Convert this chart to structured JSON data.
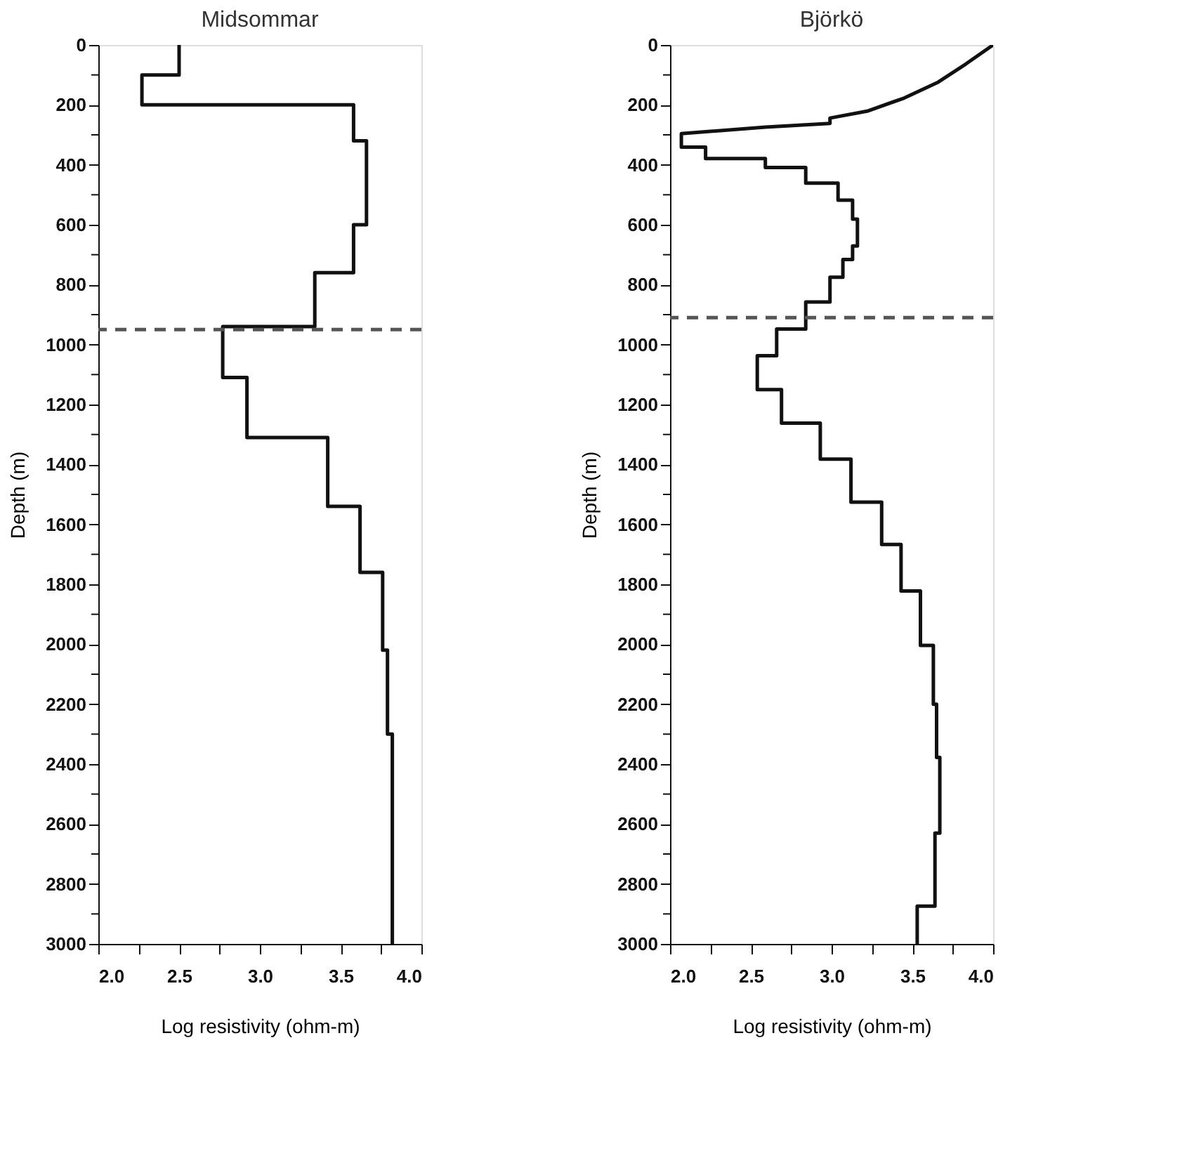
{
  "chart_data": [
    {
      "type": "line",
      "title": "Midsommar",
      "xlabel": "Log resistivity (ohm-m)",
      "ylabel": "Depth (m)",
      "xlim": [
        2.0,
        4.0
      ],
      "ylim": [
        3000,
        0
      ],
      "xticks": [
        {
          "value": 2.0,
          "label": "2.0"
        },
        {
          "value": 2.25,
          "label": null
        },
        {
          "value": 2.5,
          "label": "2.5"
        },
        {
          "value": 2.75,
          "label": null
        },
        {
          "value": 3.0,
          "label": "3.0"
        },
        {
          "value": 3.25,
          "label": null
        },
        {
          "value": 3.5,
          "label": "3.5"
        },
        {
          "value": 3.75,
          "label": null
        },
        {
          "value": 4.0,
          "label": "4.0"
        }
      ],
      "yticks": [
        0,
        {
          "value": 100,
          "label": null
        },
        200,
        {
          "value": 300,
          "label": null
        },
        400,
        {
          "value": 500,
          "label": null
        },
        600,
        {
          "value": 700,
          "label": null
        },
        800,
        {
          "value": 900,
          "label": null
        },
        1000,
        {
          "value": 1100,
          "label": null
        },
        1200,
        {
          "value": 1300,
          "label": null
        },
        1400,
        {
          "value": 1500,
          "label": null
        },
        1600,
        {
          "value": 1700,
          "label": null
        },
        1800,
        {
          "value": 1900,
          "label": null
        },
        2000,
        {
          "value": 2100,
          "label": null
        },
        2200,
        {
          "value": 2300,
          "label": null
        },
        2400,
        {
          "value": 2500,
          "label": null
        },
        2600,
        {
          "value": 2700,
          "label": null
        },
        2800,
        {
          "value": 2900,
          "label": null
        },
        3000
      ],
      "grid": false,
      "marker": "none",
      "line_style": "solid",
      "ref_lines": [
        {
          "axis": "y",
          "value": 950,
          "line_style": "dashed",
          "color": "#555555"
        }
      ],
      "series": [
        {
          "color": "#111111",
          "x": [
            2.5,
            2.5,
            2.27,
            2.27,
            3.58,
            3.58,
            3.66,
            3.66,
            3.58,
            3.58,
            3.34,
            3.34,
            2.77,
            2.77,
            2.92,
            2.92,
            3.42,
            3.42,
            3.62,
            3.62,
            3.76,
            3.76,
            3.79,
            3.79,
            3.82,
            3.82
          ],
          "values": [
            0,
            100,
            100,
            200,
            200,
            320,
            320,
            600,
            600,
            760,
            760,
            940,
            940,
            1110,
            1110,
            1310,
            1310,
            1540,
            1540,
            1760,
            1760,
            2020,
            2020,
            2300,
            2300,
            3000
          ]
        }
      ]
    },
    {
      "type": "line",
      "title": "Björkö",
      "xlabel": "Log resistivity (ohm-m)",
      "ylabel": "Depth (m)",
      "xlim": [
        2.0,
        4.0
      ],
      "ylim": [
        3000,
        0
      ],
      "xticks": [
        {
          "value": 2.0,
          "label": "2.0"
        },
        {
          "value": 2.25,
          "label": null
        },
        {
          "value": 2.5,
          "label": "2.5"
        },
        {
          "value": 2.75,
          "label": null
        },
        {
          "value": 3.0,
          "label": "3.0"
        },
        {
          "value": 3.25,
          "label": null
        },
        {
          "value": 3.5,
          "label": "3.5"
        },
        {
          "value": 3.75,
          "label": null
        },
        {
          "value": 4.0,
          "label": "4.0"
        }
      ],
      "yticks": [
        0,
        {
          "value": 100,
          "label": null
        },
        200,
        {
          "value": 300,
          "label": null
        },
        400,
        {
          "value": 500,
          "label": null
        },
        600,
        {
          "value": 700,
          "label": null
        },
        800,
        {
          "value": 900,
          "label": null
        },
        1000,
        {
          "value": 1100,
          "label": null
        },
        1200,
        {
          "value": 1300,
          "label": null
        },
        1400,
        {
          "value": 1500,
          "label": null
        },
        1600,
        {
          "value": 1700,
          "label": null
        },
        1800,
        {
          "value": 1900,
          "label": null
        },
        2000,
        {
          "value": 2100,
          "label": null
        },
        2200,
        {
          "value": 2300,
          "label": null
        },
        2400,
        {
          "value": 2500,
          "label": null
        },
        2600,
        {
          "value": 2700,
          "label": null
        },
        2800,
        {
          "value": 2900,
          "label": null
        },
        3000
      ],
      "grid": false,
      "marker": "none",
      "line_style": "solid",
      "ref_lines": [
        {
          "axis": "y",
          "value": 910,
          "line_style": "dashed",
          "color": "#555555"
        }
      ],
      "series": [
        {
          "color": "#111111",
          "x": [
            4.0,
            3.83,
            3.66,
            3.45,
            3.22,
            2.99,
            2.99,
            2.59,
            2.07,
            2.07,
            2.22,
            2.22,
            2.59,
            2.59,
            2.84,
            2.84,
            3.04,
            3.04,
            3.13,
            3.13,
            3.16,
            3.16,
            3.13,
            3.13,
            3.07,
            3.07,
            2.99,
            2.99,
            2.84,
            2.84,
            2.66,
            2.66,
            2.54,
            2.54,
            2.69,
            2.69,
            2.93,
            2.93,
            3.12,
            3.12,
            3.31,
            3.31,
            3.43,
            3.43,
            3.55,
            3.55,
            3.63,
            3.63,
            3.65,
            3.65,
            3.67,
            3.67,
            3.64,
            3.64,
            3.53,
            3.53
          ],
          "values": [
            0,
            64,
            124,
            177,
            221,
            244,
            262,
            274,
            296,
            341,
            341,
            379,
            379,
            409,
            409,
            461,
            461,
            518,
            518,
            581,
            581,
            671,
            671,
            716,
            716,
            775,
            775,
            858,
            858,
            948,
            948,
            1037,
            1037,
            1150,
            1150,
            1262,
            1262,
            1382,
            1382,
            1526,
            1526,
            1667,
            1667,
            1822,
            1822,
            2004,
            2004,
            2200,
            2200,
            2378,
            2378,
            2630,
            2630,
            2874,
            2874,
            3000
          ]
        }
      ]
    }
  ]
}
